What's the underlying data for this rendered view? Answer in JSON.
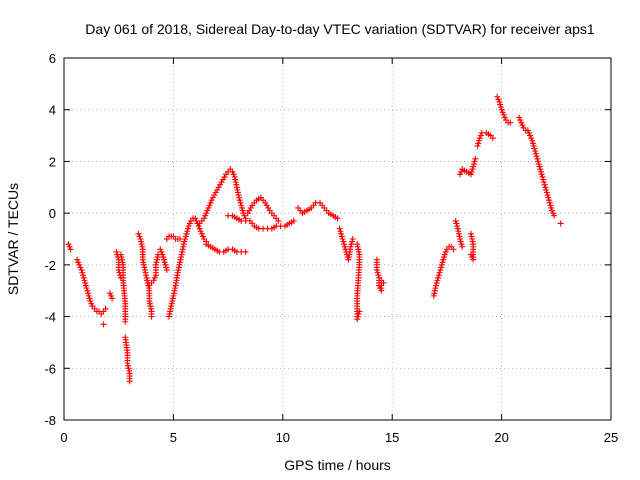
{
  "chart_data": {
    "type": "scatter",
    "title": "Day 061 of 2018, Sidereal Day-to-day VTEC variation (SDTVAR) for receiver aps1",
    "xlabel": "GPS time / hours",
    "ylabel": "SDTVAR / TECUs",
    "xlim": [
      0,
      25
    ],
    "ylim": [
      -8,
      6
    ],
    "xticks": [
      "0",
      "5",
      "10",
      "15",
      "20",
      "25"
    ],
    "yticks": [
      "-8",
      "-6",
      "-4",
      "-2",
      "0",
      "2",
      "4",
      "6"
    ],
    "grid": true,
    "marker": "plus",
    "series_color": "#ff0000",
    "segments": [
      [
        [
          0.2,
          -1.2
        ],
        [
          0.3,
          -1.4
        ]
      ],
      [
        [
          0.6,
          -1.8
        ],
        [
          0.7,
          -2.0
        ],
        [
          0.8,
          -2.2
        ],
        [
          0.9,
          -2.5
        ],
        [
          1.0,
          -2.8
        ],
        [
          1.1,
          -3.1
        ],
        [
          1.2,
          -3.4
        ],
        [
          1.3,
          -3.6
        ],
        [
          1.4,
          -3.7
        ],
        [
          1.5,
          -3.8
        ],
        [
          1.6,
          -3.8
        ],
        [
          1.7,
          -3.9
        ],
        [
          1.8,
          -3.8
        ],
        [
          1.9,
          -3.7
        ]
      ],
      [
        [
          1.8,
          -4.3
        ]
      ],
      [
        [
          2.1,
          -3.1
        ],
        [
          2.2,
          -3.3
        ]
      ],
      [
        [
          2.4,
          -1.5
        ],
        [
          2.5,
          -1.8
        ],
        [
          2.5,
          -2.2
        ],
        [
          2.6,
          -2.5
        ]
      ],
      [
        [
          2.6,
          -1.6
        ],
        [
          2.7,
          -2.0
        ],
        [
          2.7,
          -2.6
        ],
        [
          2.8,
          -3.5
        ],
        [
          2.8,
          -4.2
        ]
      ],
      [
        [
          2.8,
          -4.8
        ],
        [
          2.9,
          -5.4
        ],
        [
          2.9,
          -5.8
        ],
        [
          3.0,
          -6.2
        ],
        [
          3.0,
          -6.5
        ]
      ],
      [
        [
          3.4,
          -0.8
        ],
        [
          3.5,
          -1.0
        ],
        [
          3.6,
          -1.4
        ],
        [
          3.6,
          -1.8
        ],
        [
          3.7,
          -2.2
        ],
        [
          3.8,
          -2.6
        ],
        [
          3.9,
          -3.0
        ],
        [
          3.9,
          -3.4
        ],
        [
          4.0,
          -3.8
        ],
        [
          4.0,
          -4.0
        ]
      ],
      [
        [
          3.8,
          -2.6
        ],
        [
          3.9,
          -2.8
        ],
        [
          4.0,
          -2.7
        ],
        [
          4.1,
          -2.6
        ],
        [
          4.2,
          -2.4
        ],
        [
          4.2,
          -2.0
        ],
        [
          4.3,
          -1.6
        ]
      ],
      [
        [
          4.4,
          -1.4
        ],
        [
          4.5,
          -1.6
        ],
        [
          4.6,
          -1.9
        ],
        [
          4.7,
          -2.2
        ]
      ],
      [
        [
          4.8,
          -4.0
        ],
        [
          4.9,
          -3.6
        ],
        [
          5.0,
          -3.2
        ],
        [
          5.1,
          -2.8
        ],
        [
          5.2,
          -2.3
        ],
        [
          5.3,
          -1.9
        ],
        [
          5.4,
          -1.5
        ],
        [
          5.5,
          -1.1
        ],
        [
          5.6,
          -0.8
        ],
        [
          5.7,
          -0.5
        ],
        [
          5.8,
          -0.3
        ],
        [
          5.9,
          -0.2
        ],
        [
          6.0,
          -0.2
        ],
        [
          6.1,
          -0.4
        ],
        [
          6.2,
          -0.6
        ],
        [
          6.3,
          -0.8
        ],
        [
          6.4,
          -1.0
        ],
        [
          6.5,
          -1.1
        ]
      ],
      [
        [
          4.7,
          -1.0
        ],
        [
          4.8,
          -0.9
        ],
        [
          4.9,
          -0.9
        ],
        [
          5.0,
          -0.9
        ],
        [
          5.1,
          -1.0
        ],
        [
          5.2,
          -1.0
        ],
        [
          5.3,
          -1.0
        ]
      ],
      [
        [
          6.5,
          -1.2
        ],
        [
          6.7,
          -1.3
        ],
        [
          6.9,
          -1.4
        ],
        [
          7.1,
          -1.5
        ],
        [
          7.3,
          -1.5
        ],
        [
          7.5,
          -1.4
        ],
        [
          7.7,
          -1.4
        ],
        [
          7.9,
          -1.5
        ],
        [
          8.1,
          -1.5
        ],
        [
          8.3,
          -1.5
        ]
      ],
      [
        [
          6.2,
          -0.4
        ],
        [
          6.4,
          -0.2
        ],
        [
          6.6,
          0.2
        ],
        [
          6.8,
          0.6
        ],
        [
          7.0,
          0.9
        ],
        [
          7.2,
          1.2
        ],
        [
          7.4,
          1.5
        ],
        [
          7.6,
          1.7
        ],
        [
          7.7,
          1.6
        ],
        [
          7.8,
          1.4
        ],
        [
          7.9,
          1.0
        ],
        [
          8.0,
          0.6
        ],
        [
          8.1,
          0.3
        ],
        [
          8.2,
          0.0
        ],
        [
          8.3,
          -0.2
        ]
      ],
      [
        [
          7.5,
          -0.1
        ],
        [
          7.7,
          -0.1
        ],
        [
          7.9,
          -0.2
        ],
        [
          8.1,
          -0.3
        ],
        [
          8.3,
          -0.3
        ],
        [
          8.5,
          -0.3
        ],
        [
          8.7,
          -0.5
        ],
        [
          8.9,
          -0.6
        ],
        [
          9.1,
          -0.6
        ],
        [
          9.3,
          -0.6
        ],
        [
          9.5,
          -0.6
        ],
        [
          9.7,
          -0.5
        ],
        [
          9.9,
          -0.5
        ],
        [
          10.1,
          -0.5
        ],
        [
          10.3,
          -0.4
        ],
        [
          10.5,
          -0.3
        ]
      ],
      [
        [
          8.4,
          0.0
        ],
        [
          8.6,
          0.3
        ],
        [
          8.8,
          0.5
        ],
        [
          9.0,
          0.6
        ],
        [
          9.2,
          0.4
        ],
        [
          9.4,
          0.1
        ],
        [
          9.6,
          -0.1
        ],
        [
          9.8,
          -0.3
        ]
      ],
      [
        [
          10.7,
          0.2
        ],
        [
          10.9,
          0.0
        ],
        [
          11.1,
          0.1
        ],
        [
          11.3,
          0.2
        ],
        [
          11.5,
          0.4
        ],
        [
          11.7,
          0.4
        ],
        [
          11.9,
          0.2
        ],
        [
          12.1,
          0.0
        ],
        [
          12.3,
          -0.1
        ],
        [
          12.5,
          -0.2
        ]
      ],
      [
        [
          12.6,
          -0.6
        ],
        [
          12.7,
          -0.9
        ],
        [
          12.8,
          -1.2
        ],
        [
          12.9,
          -1.5
        ],
        [
          13.0,
          -1.8
        ],
        [
          13.1,
          -1.3
        ],
        [
          13.2,
          -1.0
        ]
      ],
      [
        [
          13.4,
          -1.2
        ],
        [
          13.5,
          -1.6
        ],
        [
          13.5,
          -2.0
        ],
        [
          13.4,
          -3.2
        ],
        [
          13.4,
          -3.6
        ],
        [
          13.4,
          -4.1
        ],
        [
          13.5,
          -3.8
        ]
      ],
      [
        [
          14.3,
          -1.8
        ],
        [
          14.3,
          -2.2
        ],
        [
          14.4,
          -2.5
        ],
        [
          14.4,
          -2.8
        ],
        [
          14.5,
          -3.0
        ],
        [
          14.5,
          -2.6
        ],
        [
          14.6,
          -2.7
        ]
      ],
      [
        [
          16.9,
          -3.2
        ],
        [
          17.0,
          -2.8
        ],
        [
          17.1,
          -2.5
        ],
        [
          17.2,
          -2.2
        ],
        [
          17.3,
          -1.9
        ],
        [
          17.4,
          -1.6
        ],
        [
          17.5,
          -1.4
        ],
        [
          17.6,
          -1.3
        ],
        [
          17.7,
          -1.3
        ],
        [
          17.8,
          -1.4
        ]
      ],
      [
        [
          17.9,
          -0.3
        ],
        [
          18.0,
          -0.6
        ],
        [
          18.1,
          -1.0
        ],
        [
          18.2,
          -1.3
        ]
      ],
      [
        [
          18.1,
          1.5
        ],
        [
          18.2,
          1.7
        ],
        [
          18.6,
          1.5
        ],
        [
          18.7,
          1.8
        ],
        [
          18.8,
          2.1
        ]
      ],
      [
        [
          18.6,
          -0.8
        ],
        [
          18.7,
          -1.2
        ],
        [
          18.7,
          -1.8
        ],
        [
          18.6,
          -1.6
        ]
      ],
      [
        [
          18.9,
          2.6
        ],
        [
          19.0,
          2.9
        ],
        [
          19.1,
          3.1
        ],
        [
          19.3,
          3.1
        ],
        [
          19.5,
          3.0
        ],
        [
          19.6,
          2.9
        ]
      ],
      [
        [
          19.8,
          4.5
        ],
        [
          19.9,
          4.3
        ],
        [
          20.0,
          4.0
        ],
        [
          20.1,
          3.8
        ],
        [
          20.2,
          3.6
        ],
        [
          20.3,
          3.5
        ],
        [
          20.4,
          3.5
        ]
      ],
      [
        [
          20.8,
          3.7
        ],
        [
          20.9,
          3.5
        ],
        [
          21.0,
          3.3
        ],
        [
          21.1,
          3.2
        ],
        [
          21.2,
          3.2
        ],
        [
          21.3,
          3.0
        ],
        [
          21.4,
          2.8
        ],
        [
          21.5,
          2.5
        ],
        [
          21.6,
          2.2
        ],
        [
          21.7,
          1.9
        ],
        [
          21.8,
          1.6
        ],
        [
          21.9,
          1.3
        ],
        [
          22.0,
          1.0
        ],
        [
          22.1,
          0.7
        ],
        [
          22.2,
          0.4
        ],
        [
          22.3,
          0.1
        ],
        [
          22.4,
          -0.1
        ]
      ],
      [
        [
          22.7,
          -0.4
        ]
      ]
    ]
  }
}
